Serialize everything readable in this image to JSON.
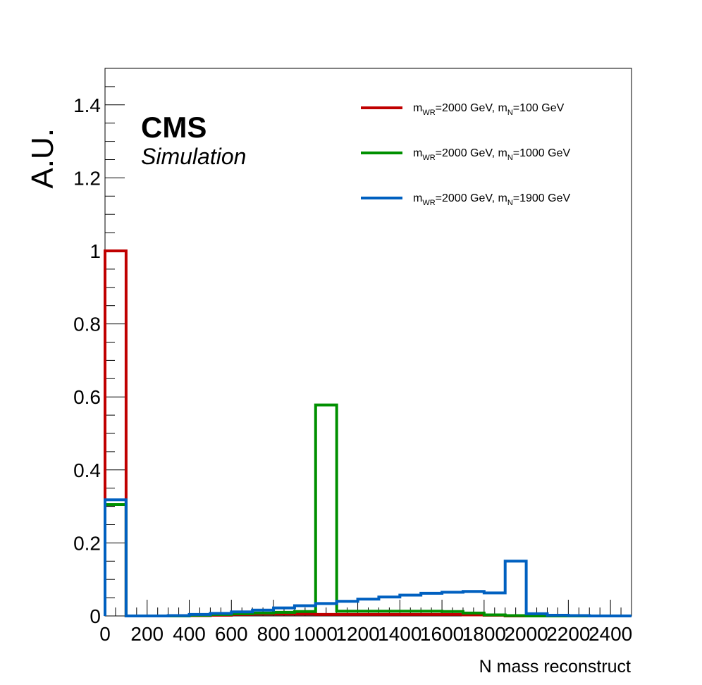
{
  "chart_data": {
    "type": "line",
    "title": "",
    "xlabel": "N mass reconstruct",
    "ylabel": "A.U.",
    "xlim": [
      0,
      2500
    ],
    "ylim": [
      0,
      1.5
    ],
    "x_ticks": [
      "0",
      "200",
      "400",
      "600",
      "800",
      "1000",
      "1200",
      "1400",
      "1600",
      "1800",
      "2000",
      "2200",
      "2400"
    ],
    "y_ticks": [
      "0",
      "0.2",
      "0.4",
      "0.6",
      "0.8",
      "1",
      "1.2",
      "1.4"
    ],
    "bin_edges": [
      0,
      100,
      200,
      300,
      400,
      500,
      600,
      700,
      800,
      900,
      1000,
      1100,
      1200,
      1300,
      1400,
      1500,
      1600,
      1700,
      1800,
      1900,
      2000,
      2100,
      2200,
      2300,
      2400,
      2500
    ],
    "series": [
      {
        "name": "m_WR=2000 GeV, m_N=100 GeV",
        "color": "#c00000",
        "values": [
          1.0,
          0.0,
          0.0,
          0.0,
          0.001,
          0.002,
          0.004,
          0.005,
          0.005,
          0.005,
          0.004,
          0.004,
          0.004,
          0.004,
          0.004,
          0.004,
          0.004,
          0.003,
          0.002,
          0.0,
          0.0,
          0.0,
          0.0,
          0.0,
          0.0
        ]
      },
      {
        "name": "m_WR=2000 GeV, m_N=1000 GeV",
        "color": "#009000",
        "values": [
          0.305,
          0.0,
          0.0,
          0.0,
          0.002,
          0.004,
          0.006,
          0.008,
          0.01,
          0.012,
          0.578,
          0.013,
          0.013,
          0.013,
          0.013,
          0.013,
          0.012,
          0.008,
          0.003,
          0.001,
          0.0,
          0.0,
          0.0,
          0.0,
          0.0
        ]
      },
      {
        "name": "m_WR=2000 GeV, m_N=1900 GeV",
        "color": "#0060c0",
        "values": [
          0.318,
          0.0,
          0.0,
          0.001,
          0.004,
          0.007,
          0.011,
          0.016,
          0.022,
          0.028,
          0.034,
          0.04,
          0.046,
          0.052,
          0.057,
          0.062,
          0.065,
          0.067,
          0.063,
          0.15,
          0.006,
          0.002,
          0.001,
          0.0,
          0.0
        ]
      }
    ],
    "legend": {
      "placement": "top-right",
      "entries": [
        {
          "main": "m",
          "sub1": "WR",
          "mid": "=2000 GeV, m",
          "sub2": "N",
          "tail": "=100 GeV",
          "color": "#c00000"
        },
        {
          "main": "m",
          "sub1": "WR",
          "mid": "=2000 GeV, m",
          "sub2": "N",
          "tail": "=1000 GeV",
          "color": "#009000"
        },
        {
          "main": "m",
          "sub1": "WR",
          "mid": "=2000 GeV, m",
          "sub2": "N",
          "tail": "=1900 GeV",
          "color": "#0060c0"
        }
      ]
    },
    "cms_label": "CMS",
    "cms_sublabel": "Simulation",
    "grid": false
  }
}
